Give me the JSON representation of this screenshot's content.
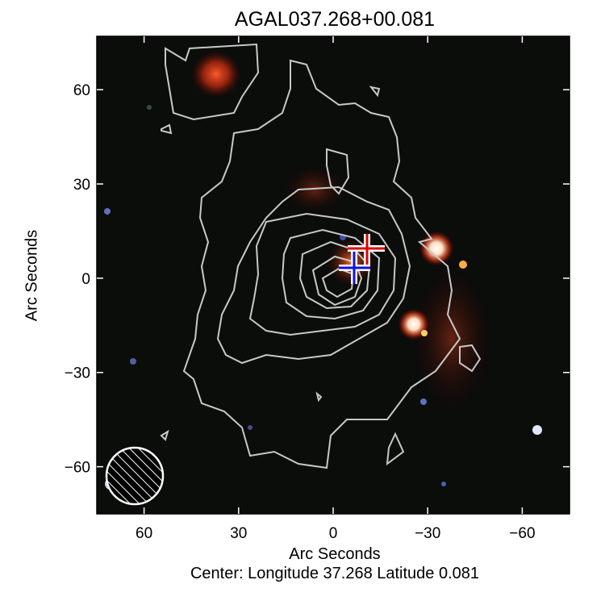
{
  "chart_data": {
    "type": "heatmap",
    "title": "AGAL037.268+00.081",
    "xlabel": "Arc Seconds",
    "ylabel": "Arc Seconds",
    "caption": "Center:  Longitude 37.268 Latitude 0.081",
    "xlim": [
      75,
      -75
    ],
    "ylim": [
      -75,
      77
    ],
    "xticks": [
      60,
      30,
      0,
      -30,
      -60
    ],
    "xtick_labels": [
      "60",
      "30",
      "0",
      "−30",
      "−60"
    ],
    "yticks": [
      60,
      30,
      0,
      -30,
      -60
    ],
    "ytick_labels": [
      "60",
      "30",
      "0",
      "−30",
      "−60"
    ],
    "background": "three-color infrared composite with grey contour overlay",
    "contour_color": "#c8c8c8",
    "markers": [
      {
        "kind": "cross",
        "color": "#ff0000",
        "x": -11.5,
        "y": 9.5
      },
      {
        "kind": "cross",
        "color": "#0000ff",
        "x": -7.5,
        "y": 3.3
      }
    ],
    "beam": {
      "x": 62,
      "y": -63,
      "diameter": 18,
      "style": "hatched circle"
    }
  }
}
